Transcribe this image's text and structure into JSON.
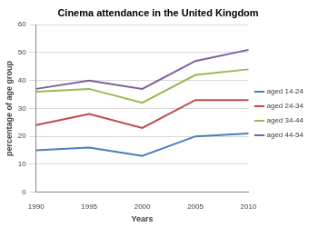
{
  "chart_data": {
    "type": "line",
    "title": "Cinema attendance in the United Kingdom",
    "x_label": "Years",
    "y_label": "percentage of age group",
    "categories": [
      "1990",
      "1995",
      "2000",
      "2005",
      "2010"
    ],
    "series": [
      {
        "name": "aged 14-24",
        "color": "#4a7ebb",
        "values": [
          15,
          16,
          13,
          20,
          21
        ]
      },
      {
        "name": "aged 24-34",
        "color": "#be4b48",
        "values": [
          24,
          28,
          23,
          33,
          33
        ]
      },
      {
        "name": "aged 34-44",
        "color": "#98b954",
        "values": [
          36,
          37,
          32,
          42,
          44
        ]
      },
      {
        "name": "aged 44-54",
        "color": "#7d60a0",
        "values": [
          37,
          40,
          37,
          47,
          51
        ]
      }
    ],
    "ylim": [
      0,
      60
    ],
    "yticks": [
      0,
      10,
      20,
      30,
      40,
      50,
      60
    ],
    "grid": true,
    "legend": "right"
  }
}
